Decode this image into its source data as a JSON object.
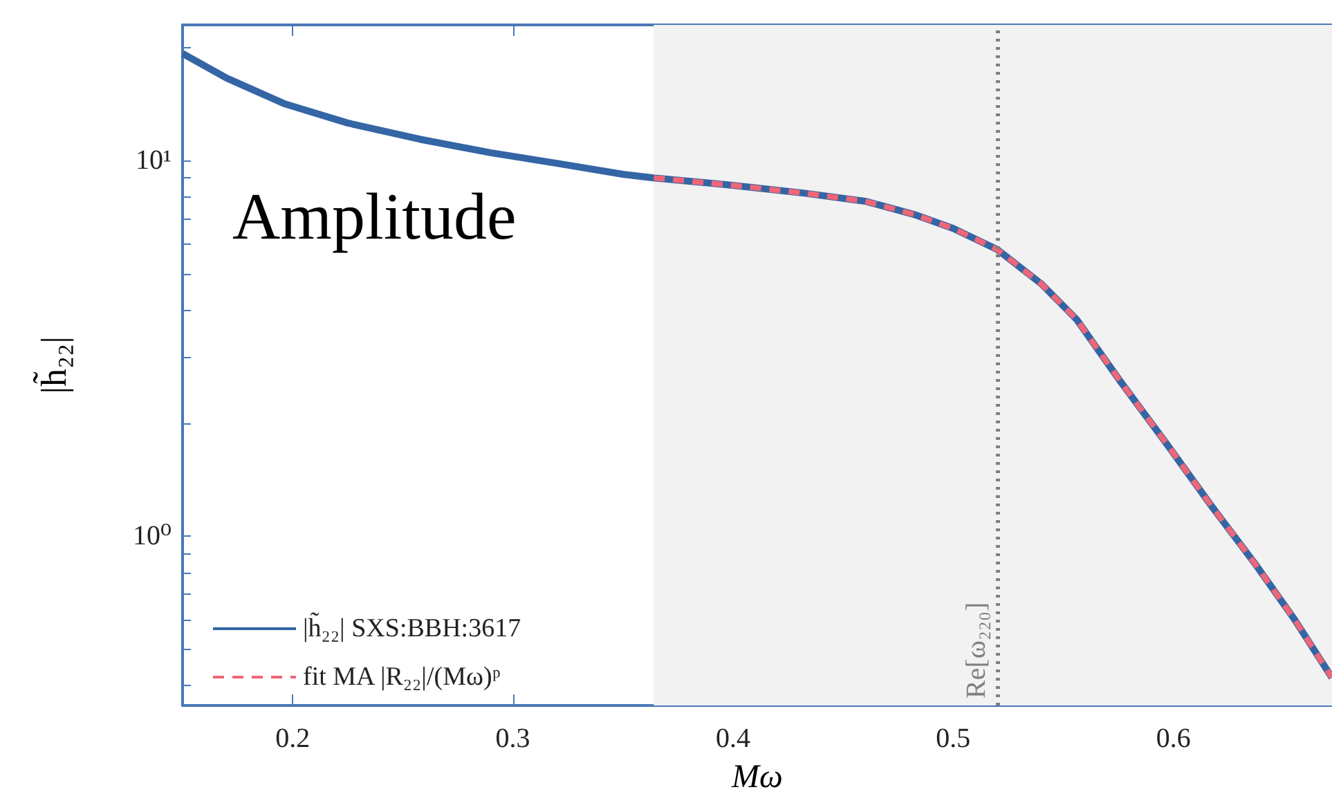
{
  "chart_data": {
    "type": "line",
    "xlabel": "Mω",
    "ylabel": "|h̃₂₂|",
    "annotations": [
      "Amplitude"
    ],
    "log": "y",
    "grid": false,
    "legend": "bottom left",
    "xlim": [
      0.15,
      0.672
    ],
    "xticks": [
      0.2,
      0.3,
      0.4,
      0.5,
      0.6
    ],
    "ylim": [
      0.354,
      23
    ],
    "yticks": [
      {
        "value": 0.4,
        "label": null
      },
      {
        "value": 0.5,
        "label": null
      },
      {
        "value": 0.6,
        "label": null
      },
      {
        "value": 0.7,
        "label": null
      },
      {
        "value": 0.8,
        "label": null
      },
      {
        "value": 0.9,
        "label": null
      },
      {
        "value": 1,
        "label": "10⁰"
      },
      {
        "value": 2,
        "label": null
      },
      {
        "value": 3,
        "label": null
      },
      {
        "value": 4,
        "label": null
      },
      {
        "value": 5,
        "label": null
      },
      {
        "value": 6,
        "label": null
      },
      {
        "value": 7,
        "label": null
      },
      {
        "value": 8,
        "label": null
      },
      {
        "value": 9,
        "label": null
      },
      {
        "value": 10,
        "label": "10¹"
      },
      {
        "value": 20,
        "label": null
      }
    ],
    "bands": [
      {
        "axis": "x",
        "from": 0.364,
        "to": 0.672,
        "color": "#f2f2f2"
      }
    ],
    "ref_lines": [
      {
        "axis": "x",
        "value": 0.52,
        "label": "Re[ω₂₂₀]",
        "color": "#808080",
        "line_style": "dotted"
      }
    ],
    "series": [
      {
        "name": "|h̃₂₂| SXS:BBH:3617",
        "color": "#3465a4",
        "line_style": "solid",
        "x": [
          0.15,
          0.17,
          0.196,
          0.225,
          0.258,
          0.29,
          0.32,
          0.35,
          0.364,
          0.4,
          0.432,
          0.46,
          0.482,
          0.5,
          0.52,
          0.54,
          0.556,
          0.576,
          0.597,
          0.617,
          0.638,
          0.655,
          0.672
        ],
        "values": [
          19.3,
          16.6,
          14.2,
          12.6,
          11.4,
          10.5,
          9.84,
          9.2,
          9.0,
          8.6,
          8.2,
          7.8,
          7.2,
          6.6,
          5.8,
          4.7,
          3.78,
          2.58,
          1.76,
          1.21,
          0.83,
          0.6,
          0.42
        ]
      },
      {
        "name": "fit MA |R₂₂|/(Mω)ᵖ",
        "color": "#ee6677",
        "line_style": "dashed",
        "x": [
          0.364,
          0.4,
          0.432,
          0.46,
          0.482,
          0.5,
          0.52,
          0.54,
          0.556,
          0.576,
          0.597,
          0.617,
          0.638,
          0.655,
          0.672
        ],
        "values": [
          9.0,
          8.6,
          8.2,
          7.8,
          7.2,
          6.6,
          5.8,
          4.7,
          3.78,
          2.58,
          1.76,
          1.21,
          0.83,
          0.6,
          0.42
        ]
      }
    ]
  }
}
